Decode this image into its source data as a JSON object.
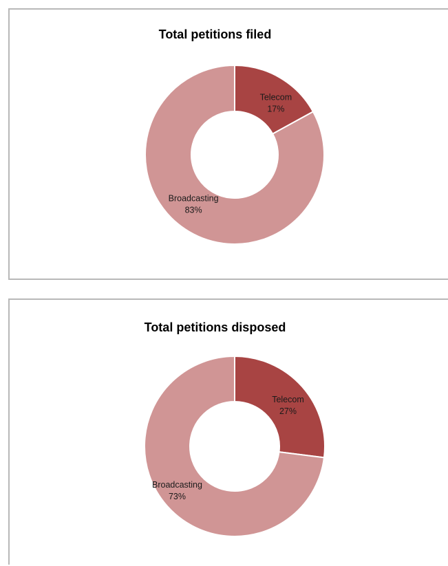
{
  "colors": {
    "telecom": "#a84443",
    "broadcasting": "#d09595",
    "slice_border": "#ffffff",
    "panel_border": "#b8b8b8"
  },
  "chart_data": [
    {
      "type": "pie",
      "variant": "donut",
      "title": "Total petitions filed",
      "legend": "none",
      "slices": [
        {
          "label": "Telecom",
          "value": 17,
          "display": "17%",
          "color": "#a84443"
        },
        {
          "label": "Broadcasting",
          "value": 83,
          "display": "83%",
          "color": "#d09595"
        }
      ]
    },
    {
      "type": "pie",
      "variant": "donut",
      "title": "Total petitions disposed",
      "legend": "none",
      "slices": [
        {
          "label": "Telecom",
          "value": 27,
          "display": "27%",
          "color": "#a84443"
        },
        {
          "label": "Broadcasting",
          "value": 73,
          "display": "73%",
          "color": "#d09595"
        }
      ]
    }
  ]
}
